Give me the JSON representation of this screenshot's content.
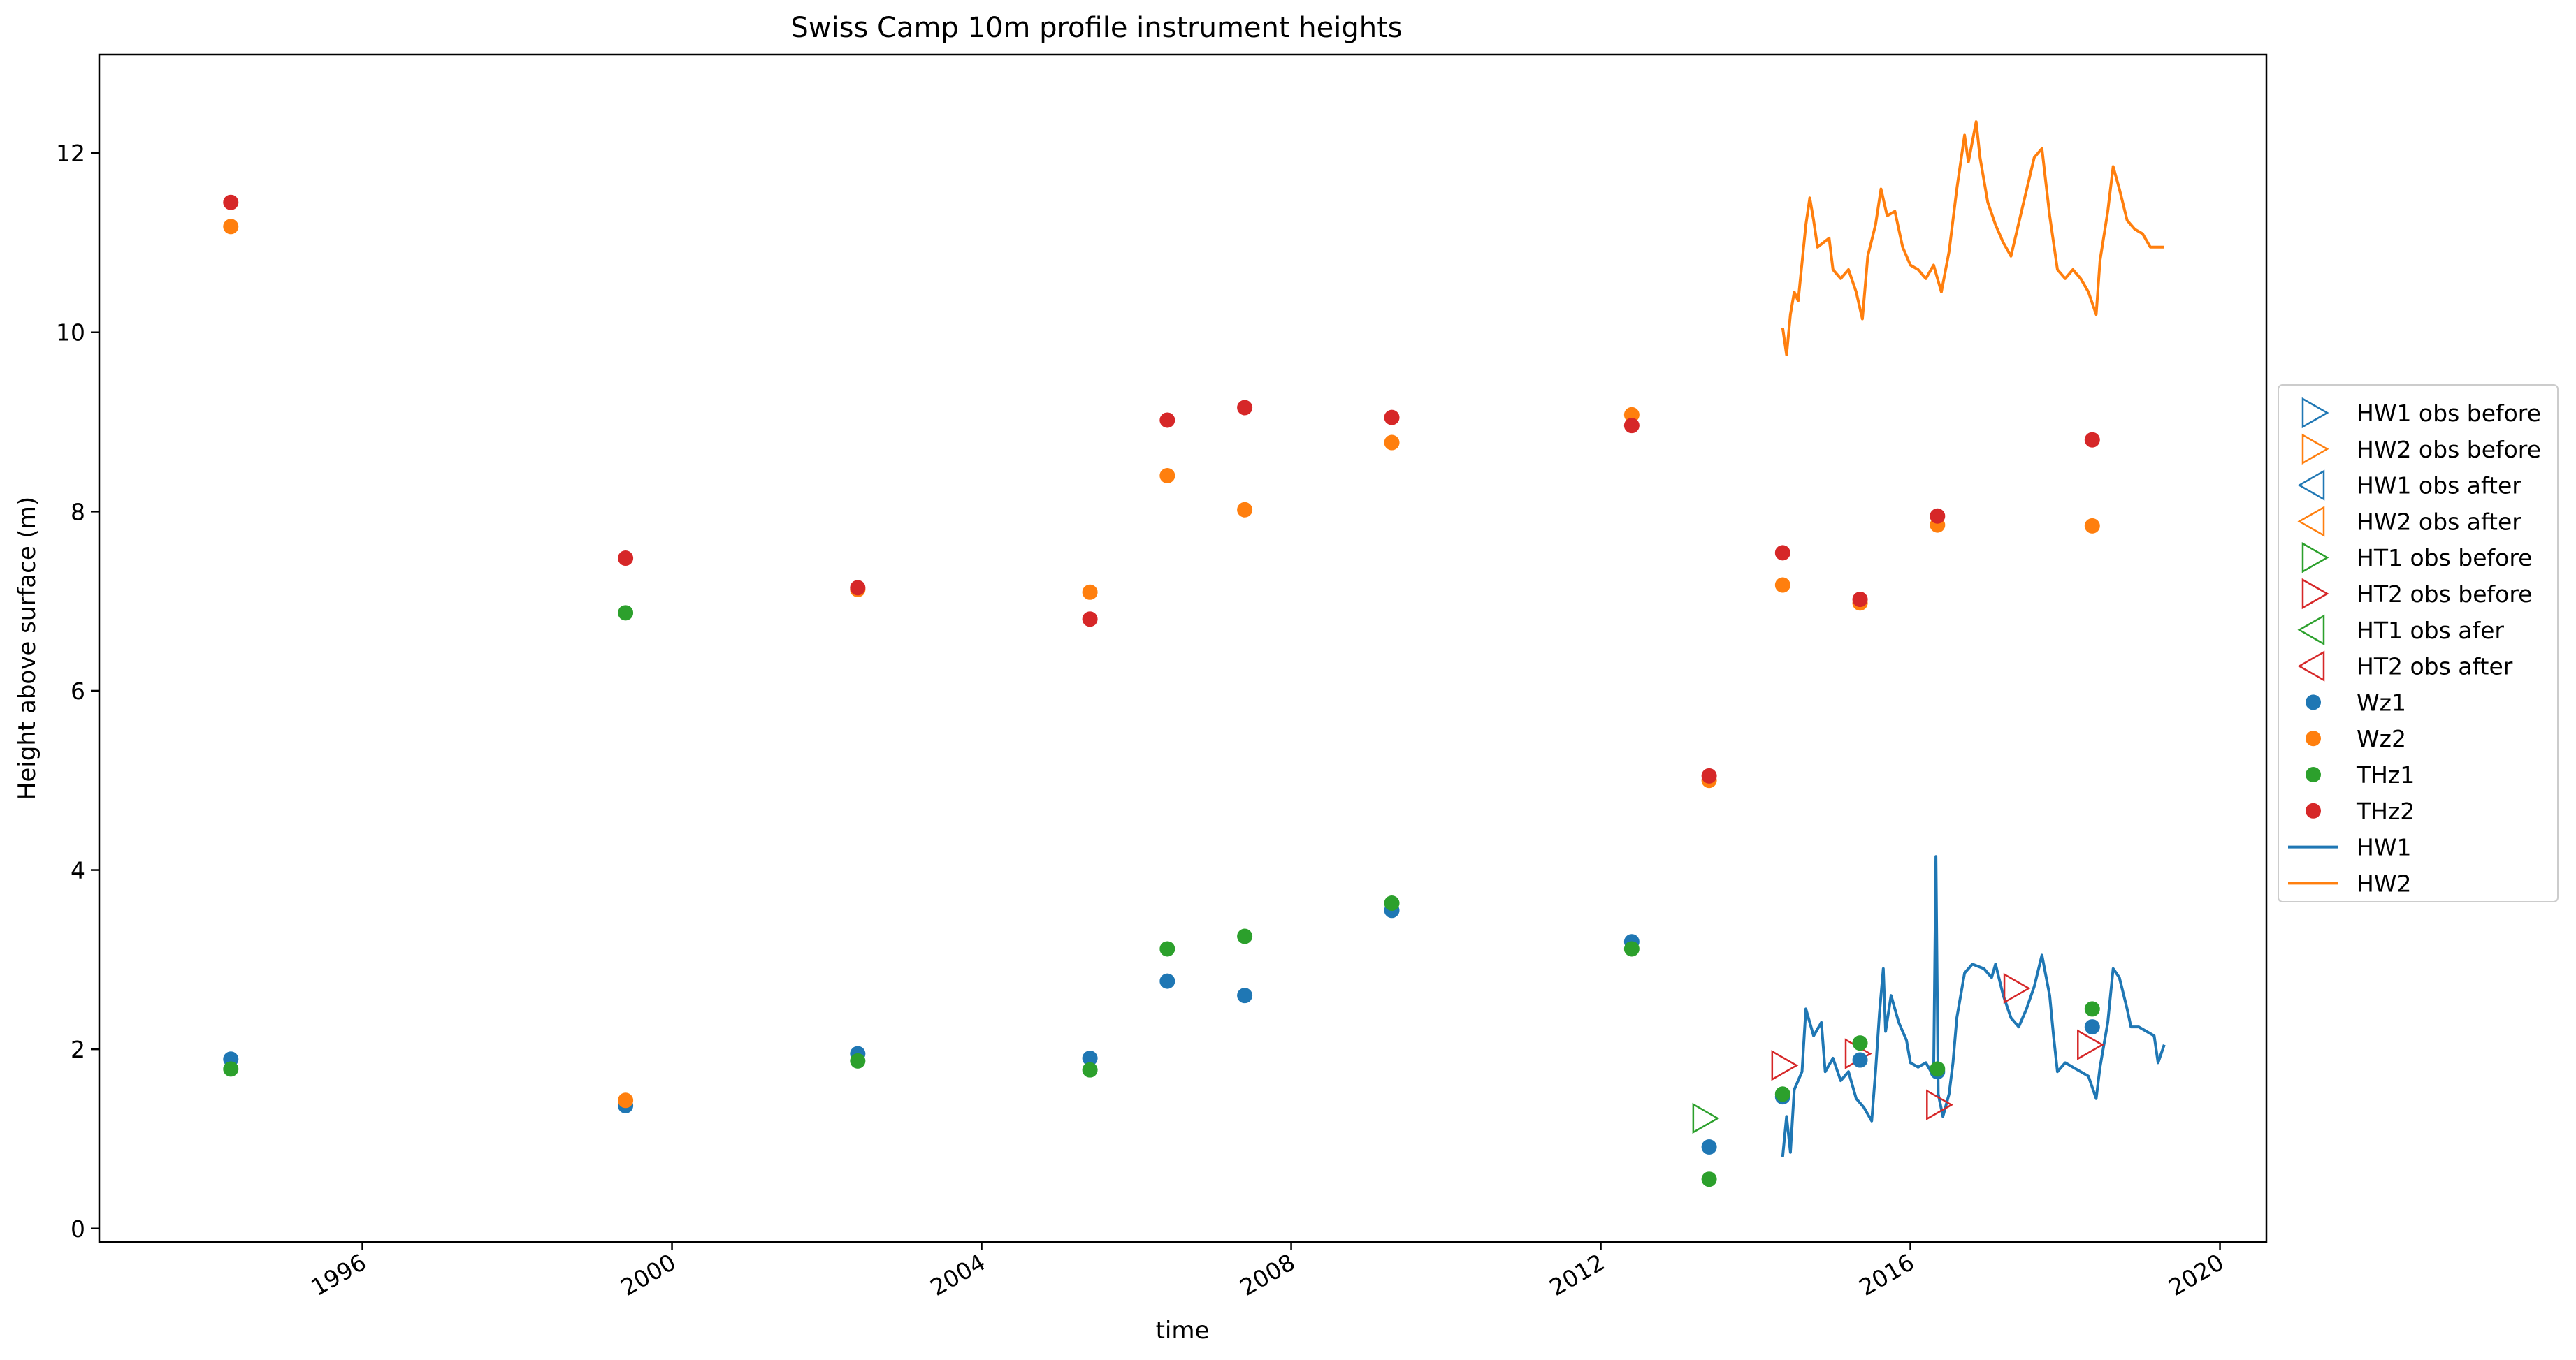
{
  "colors": {
    "blue": "#1f77b4",
    "orange": "#ff7f0e",
    "green": "#2ca02c",
    "red": "#d62728"
  },
  "chart_data": {
    "type": "scatter",
    "title": "Swiss Camp 10m profile instrument heights",
    "xlabel": "time",
    "ylabel": "Height above surface (m)",
    "xlim": [
      1992.6,
      2020.6
    ],
    "ylim": [
      -0.15,
      13.1
    ],
    "x_ticks": [
      1996,
      2000,
      2004,
      2008,
      2012,
      2016,
      2020
    ],
    "x_tick_labels": [
      "1996",
      "2000",
      "2004",
      "2008",
      "2012",
      "2016",
      "2020"
    ],
    "y_ticks": [
      0,
      2,
      4,
      6,
      8,
      10,
      12
    ],
    "y_tick_labels": [
      "0",
      "2",
      "4",
      "6",
      "8",
      "10",
      "12"
    ],
    "grid": false,
    "legend_position": "outside-right",
    "legend": [
      {
        "label": "HW1 obs before",
        "marker": "triangle-right",
        "color": "#1f77b4"
      },
      {
        "label": "HW2 obs before",
        "marker": "triangle-right",
        "color": "#ff7f0e"
      },
      {
        "label": "HW1 obs after",
        "marker": "triangle-left",
        "color": "#1f77b4"
      },
      {
        "label": "HW2 obs after",
        "marker": "triangle-left",
        "color": "#ff7f0e"
      },
      {
        "label": "HT1 obs before",
        "marker": "triangle-right",
        "color": "#2ca02c"
      },
      {
        "label": "HT2 obs before",
        "marker": "triangle-right",
        "color": "#d62728"
      },
      {
        "label": "HT1 obs afer",
        "marker": "triangle-left",
        "color": "#2ca02c"
      },
      {
        "label": "HT2 obs after",
        "marker": "triangle-left",
        "color": "#d62728"
      },
      {
        "label": "Wz1",
        "marker": "circle",
        "color": "#1f77b4"
      },
      {
        "label": "Wz2",
        "marker": "circle",
        "color": "#ff7f0e"
      },
      {
        "label": "THz1",
        "marker": "circle",
        "color": "#2ca02c"
      },
      {
        "label": "THz2",
        "marker": "circle",
        "color": "#d62728"
      },
      {
        "label": "HW1",
        "marker": "line",
        "color": "#1f77b4"
      },
      {
        "label": "HW2",
        "marker": "line",
        "color": "#ff7f0e"
      }
    ],
    "series": [
      {
        "name": "HT1 obs before",
        "marker": "triangle-right",
        "color": "#2ca02c",
        "points": [
          [
            2013.33,
            1.23
          ]
        ]
      },
      {
        "name": "HT2 obs before",
        "marker": "triangle-right",
        "color": "#d62728",
        "points": [
          [
            2014.35,
            1.82
          ],
          [
            2015.3,
            1.95
          ],
          [
            2016.35,
            1.38
          ],
          [
            2017.35,
            2.68
          ],
          [
            2018.3,
            2.05
          ]
        ]
      },
      {
        "name": "Wz1",
        "marker": "circle",
        "color": "#1f77b4",
        "points": [
          [
            1994.3,
            1.89
          ],
          [
            1999.4,
            1.37
          ],
          [
            2002.4,
            1.95
          ],
          [
            2005.4,
            1.9
          ],
          [
            2006.4,
            2.76
          ],
          [
            2007.4,
            2.6
          ],
          [
            2009.3,
            3.55
          ],
          [
            2012.4,
            3.2
          ],
          [
            2013.4,
            0.91
          ],
          [
            2014.35,
            1.47
          ],
          [
            2015.35,
            1.88
          ],
          [
            2016.35,
            1.75
          ],
          [
            2018.35,
            2.25
          ]
        ]
      },
      {
        "name": "Wz2",
        "marker": "circle",
        "color": "#ff7f0e",
        "points": [
          [
            1994.3,
            11.18
          ],
          [
            1999.4,
            1.43
          ],
          [
            2002.4,
            7.13
          ],
          [
            2005.4,
            7.1
          ],
          [
            2006.4,
            8.4
          ],
          [
            2007.4,
            8.02
          ],
          [
            2009.3,
            8.77
          ],
          [
            2012.4,
            9.08
          ],
          [
            2013.4,
            5.0
          ],
          [
            2014.35,
            7.18
          ],
          [
            2015.35,
            6.98
          ],
          [
            2016.35,
            7.85
          ],
          [
            2018.35,
            7.84
          ]
        ]
      },
      {
        "name": "THz1",
        "marker": "circle",
        "color": "#2ca02c",
        "points": [
          [
            1994.3,
            1.78
          ],
          [
            1999.4,
            6.87
          ],
          [
            2002.4,
            1.87
          ],
          [
            2005.4,
            1.77
          ],
          [
            2006.4,
            3.12
          ],
          [
            2007.4,
            3.26
          ],
          [
            2009.3,
            3.63
          ],
          [
            2012.4,
            3.12
          ],
          [
            2013.4,
            0.55
          ],
          [
            2014.35,
            1.5
          ],
          [
            2015.35,
            2.07
          ],
          [
            2016.35,
            1.78
          ],
          [
            2018.35,
            2.45
          ]
        ]
      },
      {
        "name": "THz2",
        "marker": "circle",
        "color": "#d62728",
        "points": [
          [
            1994.3,
            11.45
          ],
          [
            1999.4,
            7.48
          ],
          [
            2002.4,
            7.15
          ],
          [
            2005.4,
            6.8
          ],
          [
            2006.4,
            9.02
          ],
          [
            2007.4,
            9.16
          ],
          [
            2009.3,
            9.05
          ],
          [
            2012.4,
            8.96
          ],
          [
            2013.4,
            5.05
          ],
          [
            2014.35,
            7.54
          ],
          [
            2015.35,
            7.02
          ],
          [
            2016.35,
            7.95
          ],
          [
            2018.35,
            8.8
          ]
        ]
      },
      {
        "name": "HW1",
        "marker": "line",
        "color": "#1f77b4",
        "points": [
          [
            2014.35,
            0.8
          ],
          [
            2014.4,
            1.25
          ],
          [
            2014.45,
            0.85
          ],
          [
            2014.5,
            1.55
          ],
          [
            2014.6,
            1.75
          ],
          [
            2014.65,
            2.45
          ],
          [
            2014.75,
            2.15
          ],
          [
            2014.85,
            2.3
          ],
          [
            2014.9,
            1.75
          ],
          [
            2015.0,
            1.9
          ],
          [
            2015.1,
            1.65
          ],
          [
            2015.2,
            1.75
          ],
          [
            2015.3,
            1.45
          ],
          [
            2015.4,
            1.35
          ],
          [
            2015.5,
            1.2
          ],
          [
            2015.55,
            1.75
          ],
          [
            2015.6,
            2.4
          ],
          [
            2015.65,
            2.9
          ],
          [
            2015.68,
            2.2
          ],
          [
            2015.75,
            2.6
          ],
          [
            2015.85,
            2.3
          ],
          [
            2015.95,
            2.1
          ],
          [
            2016.0,
            1.85
          ],
          [
            2016.1,
            1.8
          ],
          [
            2016.2,
            1.85
          ],
          [
            2016.3,
            1.7
          ],
          [
            2016.33,
            4.15
          ],
          [
            2016.36,
            1.5
          ],
          [
            2016.42,
            1.25
          ],
          [
            2016.5,
            1.5
          ],
          [
            2016.55,
            1.85
          ],
          [
            2016.6,
            2.35
          ],
          [
            2016.7,
            2.85
          ],
          [
            2016.8,
            2.95
          ],
          [
            2016.95,
            2.9
          ],
          [
            2017.05,
            2.8
          ],
          [
            2017.1,
            2.95
          ],
          [
            2017.2,
            2.6
          ],
          [
            2017.3,
            2.35
          ],
          [
            2017.4,
            2.25
          ],
          [
            2017.5,
            2.45
          ],
          [
            2017.6,
            2.7
          ],
          [
            2017.7,
            3.05
          ],
          [
            2017.8,
            2.6
          ],
          [
            2017.85,
            2.15
          ],
          [
            2017.9,
            1.75
          ],
          [
            2018.0,
            1.85
          ],
          [
            2018.1,
            1.8
          ],
          [
            2018.2,
            1.75
          ],
          [
            2018.3,
            1.7
          ],
          [
            2018.4,
            1.45
          ],
          [
            2018.45,
            1.8
          ],
          [
            2018.55,
            2.3
          ],
          [
            2018.62,
            2.9
          ],
          [
            2018.7,
            2.8
          ],
          [
            2018.8,
            2.45
          ],
          [
            2018.85,
            2.25
          ],
          [
            2018.95,
            2.25
          ],
          [
            2019.05,
            2.2
          ],
          [
            2019.15,
            2.15
          ],
          [
            2019.2,
            1.85
          ],
          [
            2019.28,
            2.05
          ]
        ]
      },
      {
        "name": "HW2",
        "marker": "line",
        "color": "#ff7f0e",
        "points": [
          [
            2014.35,
            10.05
          ],
          [
            2014.4,
            9.75
          ],
          [
            2014.45,
            10.2
          ],
          [
            2014.5,
            10.45
          ],
          [
            2014.55,
            10.35
          ],
          [
            2014.65,
            11.2
          ],
          [
            2014.7,
            11.5
          ],
          [
            2014.75,
            11.25
          ],
          [
            2014.8,
            10.95
          ],
          [
            2014.95,
            11.05
          ],
          [
            2015.0,
            10.7
          ],
          [
            2015.1,
            10.6
          ],
          [
            2015.2,
            10.7
          ],
          [
            2015.3,
            10.45
          ],
          [
            2015.38,
            10.15
          ],
          [
            2015.45,
            10.85
          ],
          [
            2015.55,
            11.2
          ],
          [
            2015.62,
            11.6
          ],
          [
            2015.7,
            11.3
          ],
          [
            2015.8,
            11.35
          ],
          [
            2015.9,
            10.95
          ],
          [
            2016.0,
            10.75
          ],
          [
            2016.1,
            10.7
          ],
          [
            2016.2,
            10.6
          ],
          [
            2016.3,
            10.75
          ],
          [
            2016.4,
            10.45
          ],
          [
            2016.5,
            10.9
          ],
          [
            2016.6,
            11.6
          ],
          [
            2016.7,
            12.2
          ],
          [
            2016.75,
            11.9
          ],
          [
            2016.85,
            12.35
          ],
          [
            2016.9,
            11.95
          ],
          [
            2017.0,
            11.45
          ],
          [
            2017.1,
            11.2
          ],
          [
            2017.2,
            11.0
          ],
          [
            2017.3,
            10.85
          ],
          [
            2017.45,
            11.4
          ],
          [
            2017.6,
            11.95
          ],
          [
            2017.7,
            12.05
          ],
          [
            2017.8,
            11.3
          ],
          [
            2017.9,
            10.7
          ],
          [
            2018.0,
            10.6
          ],
          [
            2018.1,
            10.7
          ],
          [
            2018.2,
            10.6
          ],
          [
            2018.3,
            10.45
          ],
          [
            2018.4,
            10.2
          ],
          [
            2018.45,
            10.8
          ],
          [
            2018.55,
            11.35
          ],
          [
            2018.62,
            11.85
          ],
          [
            2018.7,
            11.6
          ],
          [
            2018.8,
            11.25
          ],
          [
            2018.9,
            11.15
          ],
          [
            2019.0,
            11.1
          ],
          [
            2019.1,
            10.95
          ],
          [
            2019.2,
            10.95
          ],
          [
            2019.28,
            10.95
          ]
        ]
      }
    ]
  }
}
